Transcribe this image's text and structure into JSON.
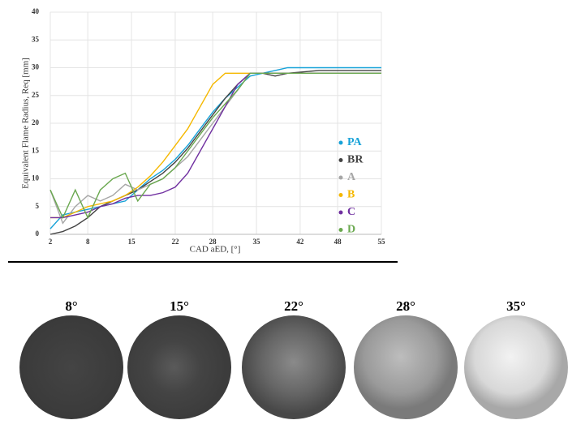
{
  "chart_data": {
    "type": "line",
    "x_label": "CAD aED, [°]",
    "y_label": "Equivalent Flame Radius, Req [mm]",
    "x": [
      2,
      4,
      6,
      8,
      10,
      12,
      14,
      16,
      18,
      20,
      22,
      24,
      26,
      28,
      30,
      32,
      34,
      36,
      38,
      40,
      45,
      50,
      55
    ],
    "series": [
      {
        "name": "PA",
        "color": "#17a2d8",
        "values": [
          1,
          3.5,
          4,
          4.5,
          5,
          5.5,
          6,
          8,
          10,
          11.5,
          13.5,
          16,
          19,
          22,
          24.5,
          26.5,
          28.5,
          29,
          29.5,
          30,
          30,
          30,
          30
        ]
      },
      {
        "name": "BR",
        "color": "#444444",
        "values": [
          0,
          0.5,
          1.5,
          3,
          5,
          6,
          7,
          8,
          9.5,
          11,
          13,
          15.5,
          18.5,
          21.5,
          24.5,
          27,
          29,
          29,
          28.5,
          29,
          29.5,
          29.5,
          29.5
        ]
      },
      {
        "name": "A",
        "color": "#a6a6a6",
        "values": [
          8,
          2,
          5,
          7,
          6,
          7,
          9,
          8,
          9,
          10,
          12,
          14,
          17,
          20,
          23,
          26,
          29,
          29,
          29,
          29,
          29,
          29,
          29
        ]
      },
      {
        "name": "B",
        "color": "#f5b800",
        "values": [
          3,
          3,
          4,
          5,
          5.5,
          6,
          7,
          8.5,
          10.5,
          13,
          16,
          19,
          23,
          27,
          29,
          29,
          29,
          29,
          29,
          29,
          29,
          29,
          29
        ]
      },
      {
        "name": "C",
        "color": "#7030a0",
        "values": [
          3,
          3,
          3.5,
          4,
          5,
          5.5,
          6.5,
          7,
          7,
          7.5,
          8.5,
          11,
          15,
          19,
          23,
          27,
          29,
          29,
          29,
          29,
          29,
          29,
          29
        ]
      },
      {
        "name": "D",
        "color": "#6aa84f",
        "values": [
          8,
          3,
          8,
          3,
          8,
          10,
          11,
          6,
          9,
          10,
          12,
          15,
          18,
          21,
          23.5,
          26,
          29,
          29,
          29,
          29,
          29,
          29,
          29
        ]
      }
    ],
    "xlim": [
      2,
      55
    ],
    "xticks": [
      2,
      8,
      15,
      22,
      28,
      35,
      42,
      48,
      55
    ],
    "ylim": [
      0,
      40
    ],
    "yticks": [
      0,
      5,
      10,
      15,
      20,
      25,
      30,
      35,
      40
    ],
    "grid": true,
    "legend": "lower right"
  },
  "images": [
    {
      "label": "8°"
    },
    {
      "label": "15°"
    },
    {
      "label": "22°"
    },
    {
      "label": "28°"
    },
    {
      "label": "35°"
    }
  ]
}
